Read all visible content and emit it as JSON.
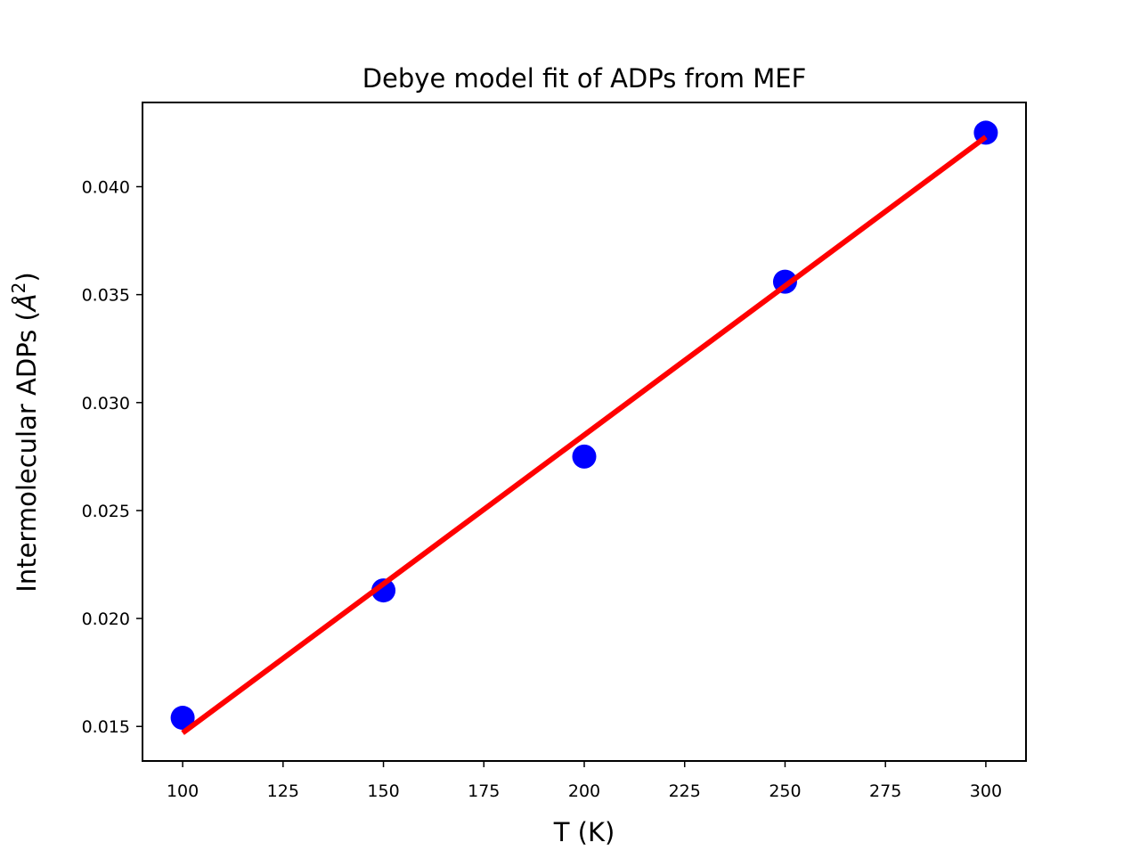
{
  "chart_data": {
    "type": "scatter",
    "title": "Debye model fit of ADPs from MEF",
    "xlabel": "T (K)",
    "ylabel_main": "Intermolecular ADPs (",
    "ylabel_unit": "Å",
    "ylabel_sup": "2",
    "ylabel_close": ")",
    "xlim": [
      90,
      310
    ],
    "ylim": [
      0.0134,
      0.0439
    ],
    "x_ticks": [
      {
        "value": 100,
        "label": "100"
      },
      {
        "value": 125,
        "label": "125"
      },
      {
        "value": 150,
        "label": "150"
      },
      {
        "value": 175,
        "label": "175"
      },
      {
        "value": 200,
        "label": "200"
      },
      {
        "value": 225,
        "label": "225"
      },
      {
        "value": 250,
        "label": "250"
      },
      {
        "value": 275,
        "label": "275"
      },
      {
        "value": 300,
        "label": "300"
      }
    ],
    "y_ticks": [
      {
        "value": 0.015,
        "label": "0.015"
      },
      {
        "value": 0.02,
        "label": "0.020"
      },
      {
        "value": 0.025,
        "label": "0.025"
      },
      {
        "value": 0.03,
        "label": "0.030"
      },
      {
        "value": 0.035,
        "label": "0.035"
      },
      {
        "value": 0.04,
        "label": "0.040"
      }
    ],
    "grid": false,
    "series": [
      {
        "kind": "scatter",
        "color": "#0000ff",
        "x": [
          100,
          150,
          200,
          250,
          300
        ],
        "y": [
          0.0154,
          0.0213,
          0.0275,
          0.0356,
          0.0425
        ]
      },
      {
        "kind": "line",
        "color": "#ff0000",
        "x": [
          100,
          300
        ],
        "y": [
          0.0147,
          0.0423
        ]
      }
    ]
  }
}
